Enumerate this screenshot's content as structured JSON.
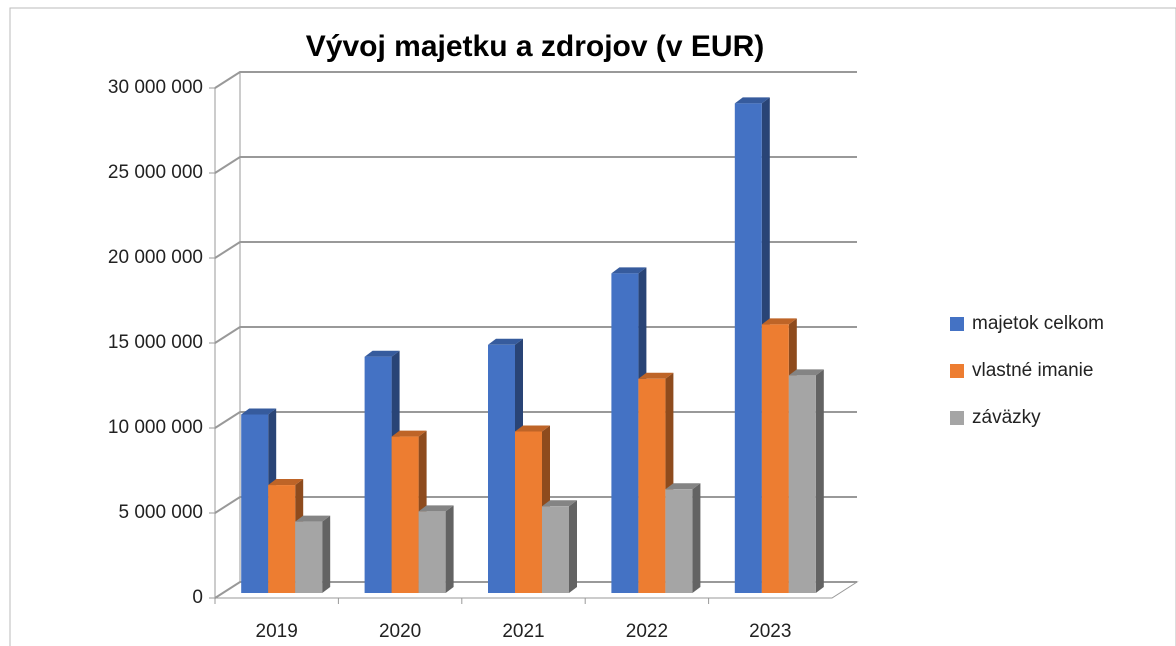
{
  "chart_data": {
    "type": "bar3d",
    "title": "Vývoj majetku a zdrojov (v EUR)",
    "categories": [
      "2019",
      "2020",
      "2021",
      "2022",
      "2023"
    ],
    "series": [
      {
        "name": "majetok celkom",
        "color": "#4472c4",
        "values": [
          10500000,
          13900000,
          14600000,
          18800000,
          28800000
        ]
      },
      {
        "name": "vlastné imanie",
        "color": "#ed7d31",
        "values": [
          6350000,
          9200000,
          9500000,
          12600000,
          15800000
        ]
      },
      {
        "name": "záväzky",
        "color": "#a5a5a5",
        "values": [
          4200000,
          4800000,
          5100000,
          6100000,
          12800000
        ]
      }
    ],
    "ylim": [
      0,
      30000000
    ],
    "yticks": [
      0,
      {
        "value": 5000000,
        "label": "5 000 000"
      },
      {
        "value": 10000000,
        "label": "10 000 000"
      },
      {
        "value": 15000000,
        "label": "15 000 000"
      },
      {
        "value": 20000000,
        "label": "20 000 000"
      },
      {
        "value": 25000000,
        "label": "25 000 000"
      },
      {
        "value": 30000000,
        "label": "30 000 000"
      }
    ],
    "grid": true,
    "legend": "right"
  }
}
